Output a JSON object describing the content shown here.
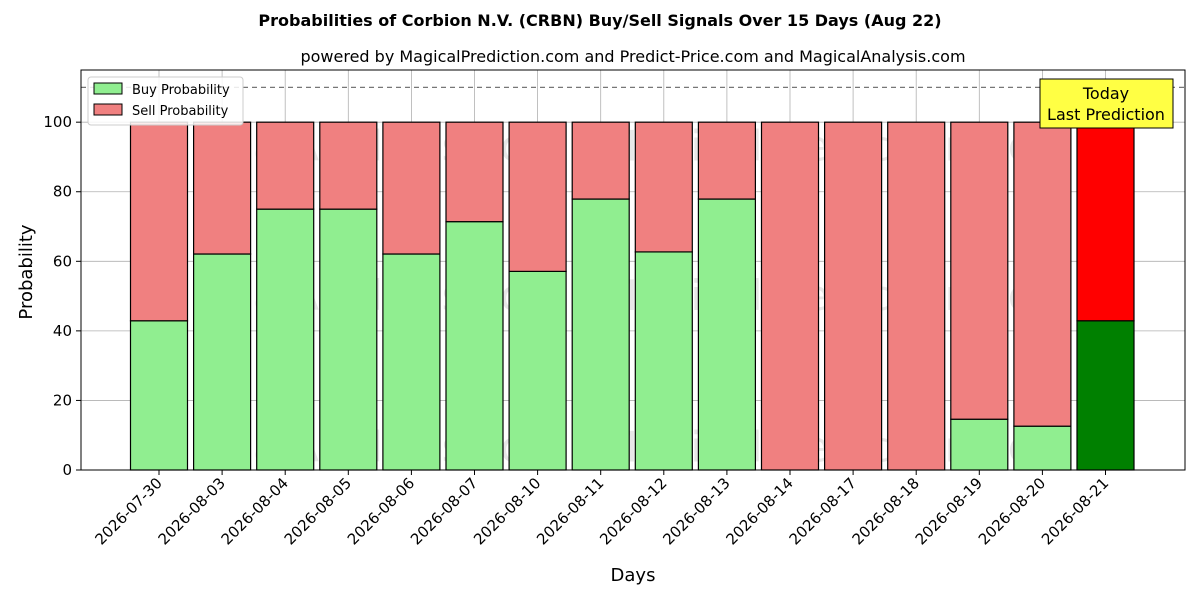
{
  "chart_data": {
    "type": "bar",
    "stacked": true,
    "title": "Probabilities of Corbion N.V. (CRBN) Buy/Sell Signals Over 15 Days (Aug 22)",
    "subtitle": "powered by MagicalPrediction.com and Predict-Price.com and MagicalAnalysis.com",
    "xlabel": "Days",
    "ylabel": "Probability",
    "ylim": [
      0,
      115
    ],
    "yticks": [
      0,
      20,
      40,
      60,
      80,
      100
    ],
    "grid": true,
    "legend_position": "top-left",
    "reference_line": 110,
    "categories": [
      "2026-07-30",
      "2026-08-03",
      "2026-08-04",
      "2026-08-05",
      "2026-08-06",
      "2026-08-07",
      "2026-08-10",
      "2026-08-11",
      "2026-08-12",
      "2026-08-13",
      "2026-08-14",
      "2026-08-17",
      "2026-08-18",
      "2026-08-19",
      "2026-08-20",
      "2026-08-21"
    ],
    "series": [
      {
        "name": "Buy Probability",
        "color": "#90ee90",
        "highlight_color": "#008000",
        "values": [
          42.9,
          62.1,
          75.0,
          75.0,
          62.1,
          71.4,
          57.1,
          77.9,
          62.7,
          77.9,
          0,
          0,
          0,
          14.6,
          12.6,
          42.9
        ]
      },
      {
        "name": "Sell Probability",
        "color": "#f08080",
        "highlight_color": "#ff0000",
        "values": [
          57.1,
          37.9,
          25.0,
          25.0,
          37.9,
          28.6,
          42.9,
          22.1,
          37.3,
          22.1,
          100,
          100,
          100,
          85.4,
          87.4,
          57.1
        ]
      }
    ],
    "highlight_index": 15,
    "annotation": {
      "line1": "Today",
      "line2": "Last Prediction",
      "color": "#ffff44"
    },
    "watermarks": [
      "MagicalAnalysis.com",
      "MagicalPrediction.com"
    ]
  }
}
